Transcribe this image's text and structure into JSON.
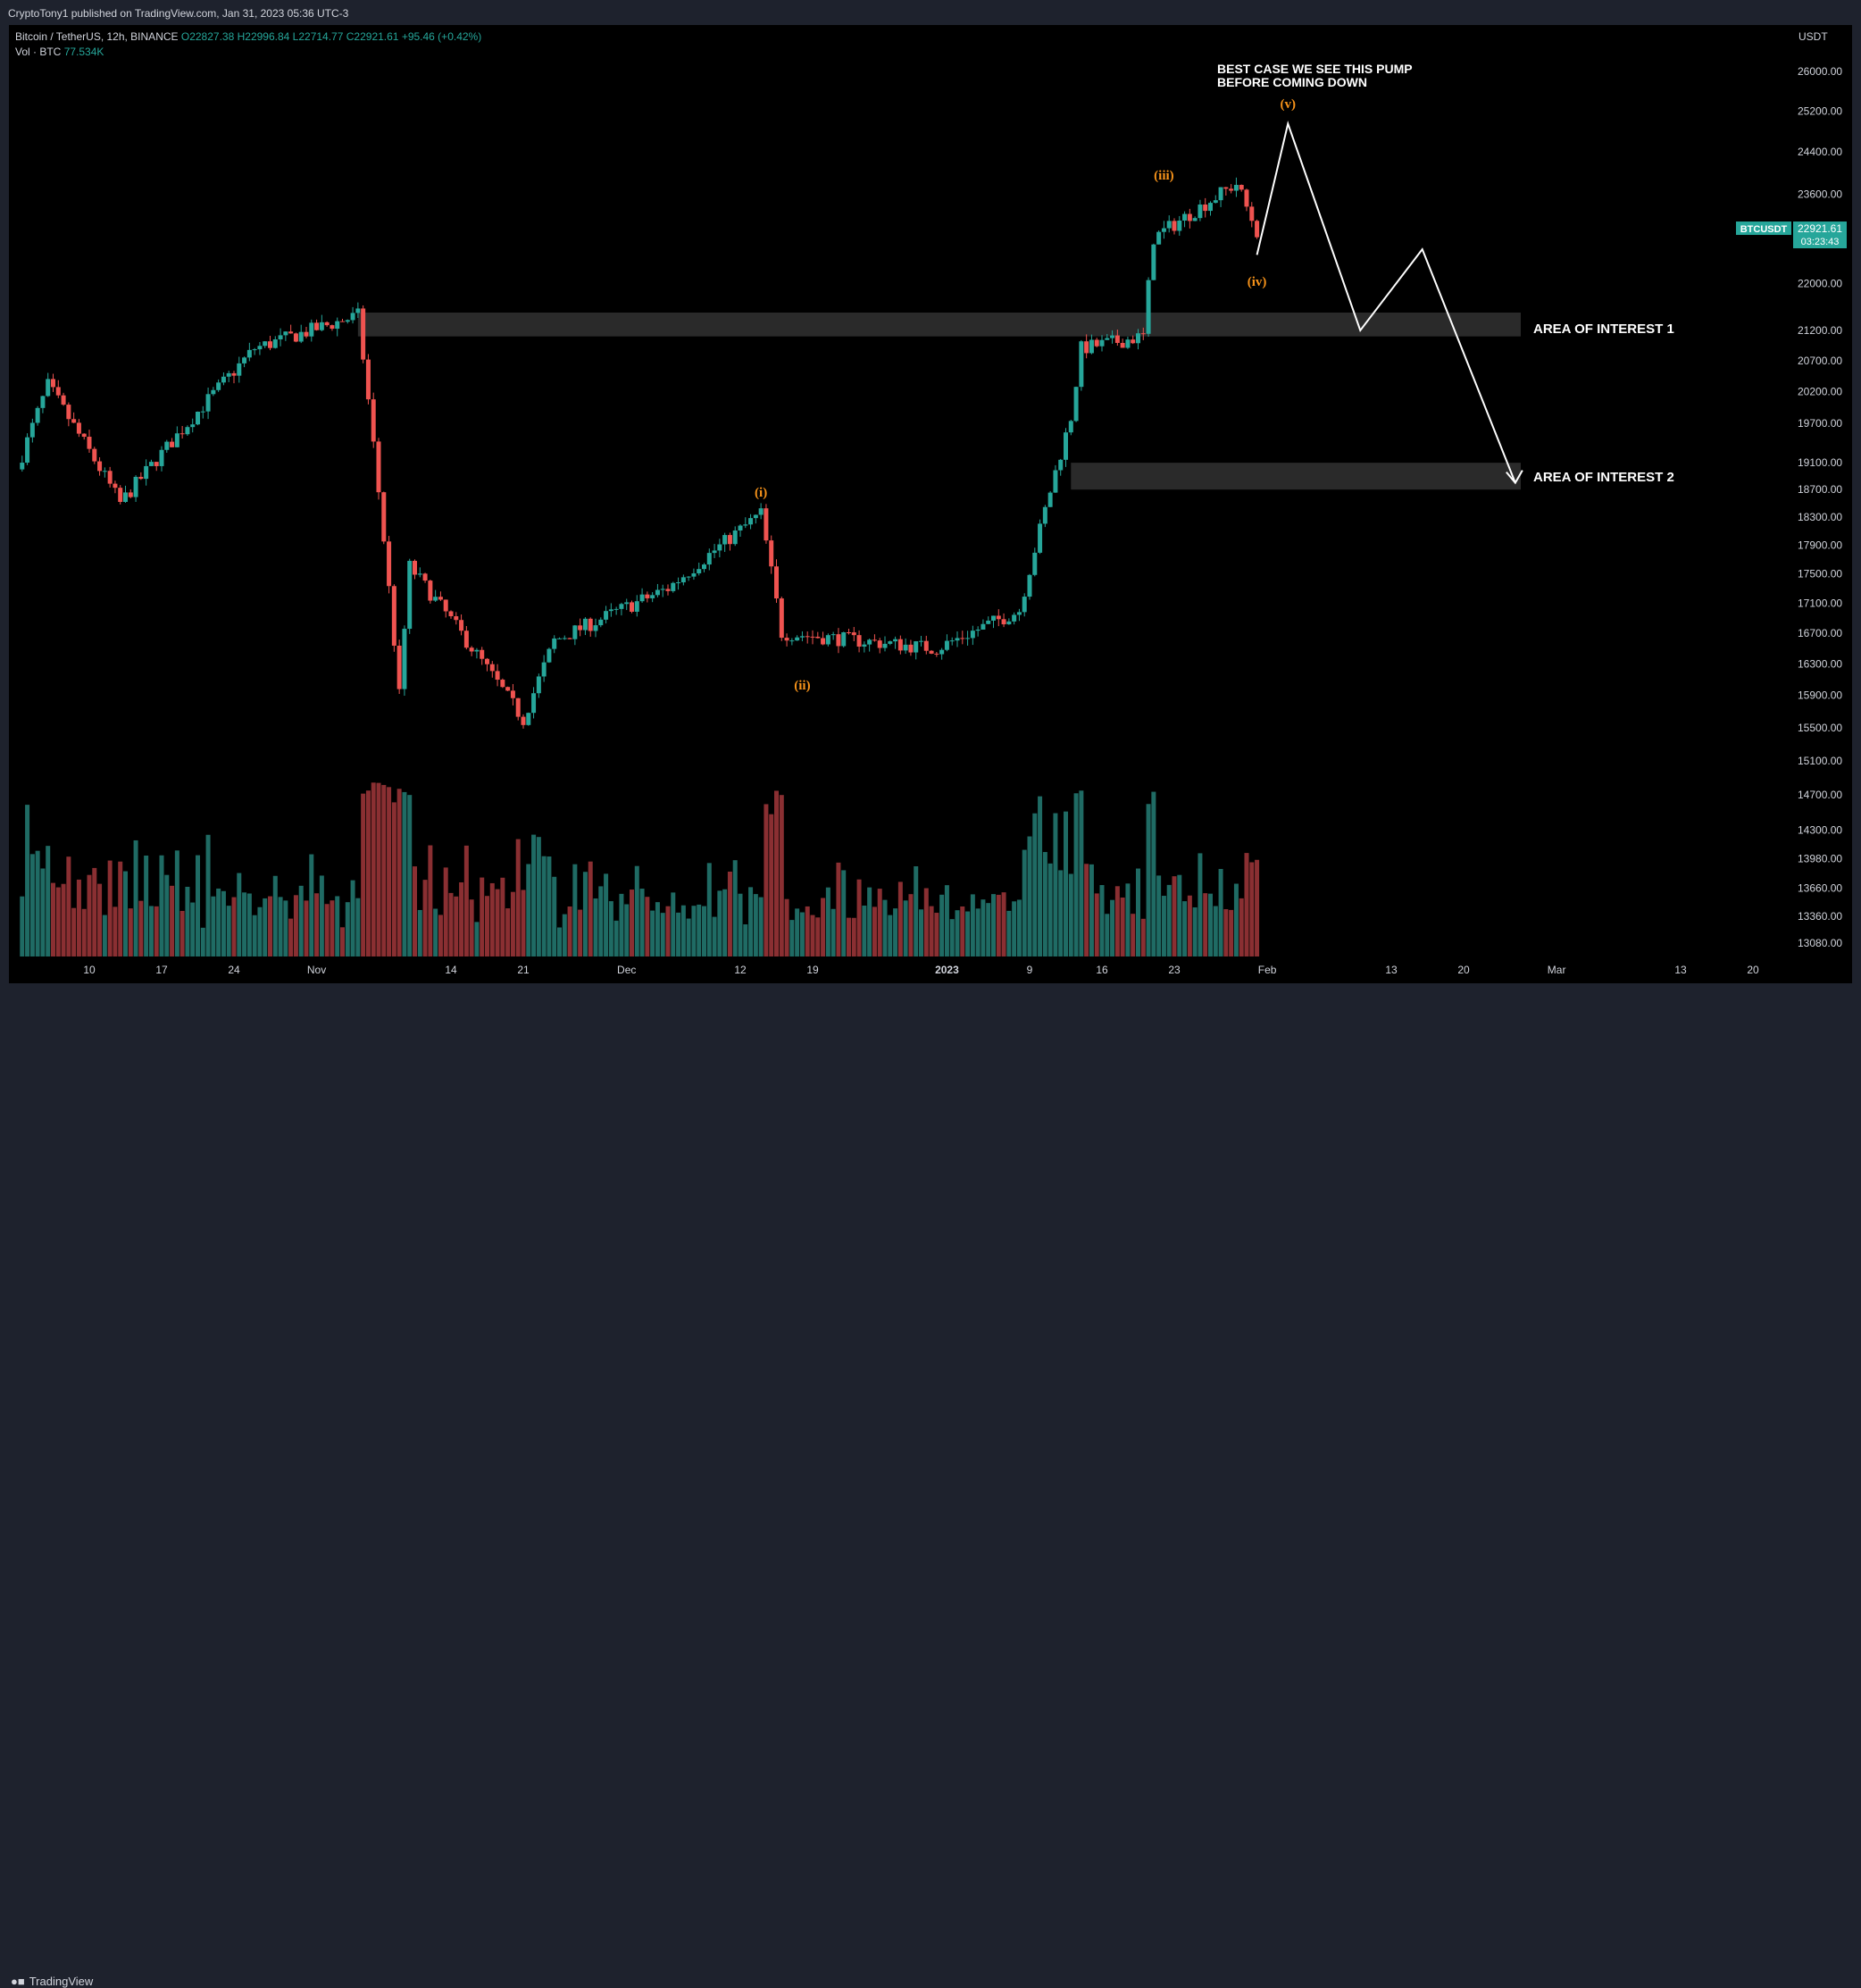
{
  "header": {
    "published_line": "CryptoTony1 published on TradingView.com, Jan 31, 2023 05:36 UTC-3"
  },
  "footer": {
    "brand": "TradingView"
  },
  "legend": {
    "symbol": "Bitcoin / TetherUS, 12h, BINANCE",
    "open": "O22827.38",
    "high": "H22996.84",
    "low": "L22714.77",
    "close": "C22921.61",
    "change": "+95.46 (+0.42%)",
    "vol_label": "Vol · BTC",
    "vol_value": "77.534K"
  },
  "price_badge": {
    "symbol": "BTCUSDT",
    "price": "22921.61",
    "countdown": "03:23:43"
  },
  "annotations": {
    "note_line1": "BEST CASE WE SEE THIS PUMP",
    "note_line2": "BEFORE COMING DOWN",
    "area1": "AREA OF INTEREST 1",
    "area2": "AREA OF INTEREST 2",
    "wave_i": "(i)",
    "wave_ii": "(ii)",
    "wave_iii": "(iii)",
    "wave_iv": "(iv)",
    "wave_v": "(v)"
  },
  "colors": {
    "up": "#26a69a",
    "down": "#ef5350",
    "vol_up": "#1f6b64",
    "vol_down": "#8a2f32",
    "wave": "#f7931a",
    "zone": "#2a2a2a"
  },
  "chart_data": {
    "type": "candlestick",
    "scale": "log",
    "yaxis_unit": "USDT",
    "yticks": [
      26000,
      25200,
      24400,
      23600,
      22000,
      21200,
      20700,
      20200,
      19700,
      19100,
      18700,
      18300,
      17900,
      17500,
      17100,
      16700,
      16300,
      15900,
      15500,
      15100,
      14700,
      14300,
      13980,
      13660,
      13360,
      13080
    ],
    "xticks": [
      "10",
      "17",
      "24",
      "Nov",
      "14",
      "21",
      "Dec",
      "12",
      "19",
      "2023",
      "9",
      "16",
      "23",
      "Feb",
      "13",
      "20",
      "Mar",
      "13",
      "20"
    ],
    "key_points": [
      {
        "date": "2022-10-03",
        "price": 19000
      },
      {
        "date": "2022-10-06",
        "price": 20300
      },
      {
        "date": "2022-10-13",
        "price": 18500
      },
      {
        "date": "2022-10-26",
        "price": 20900
      },
      {
        "date": "2022-11-05",
        "price": 21450
      },
      {
        "date": "2022-11-09",
        "price": 15900
      },
      {
        "date": "2022-11-10",
        "price": 17600
      },
      {
        "date": "2022-11-21",
        "price": 15600
      },
      {
        "date": "2022-11-24",
        "price": 16600
      },
      {
        "date": "2022-12-05",
        "price": 17300
      },
      {
        "date": "2022-12-14",
        "price": 18350
      },
      {
        "date": "2022-12-16",
        "price": 16700
      },
      {
        "date": "2022-12-31",
        "price": 16500
      },
      {
        "date": "2023-01-08",
        "price": 17000
      },
      {
        "date": "2023-01-13",
        "price": 19800
      },
      {
        "date": "2023-01-14",
        "price": 20900
      },
      {
        "date": "2023-01-20",
        "price": 21100
      },
      {
        "date": "2023-01-21",
        "price": 22800
      },
      {
        "date": "2023-01-29",
        "price": 23800
      },
      {
        "date": "2023-01-31",
        "price": 22921.61
      }
    ],
    "zones": [
      {
        "label": "AREA OF INTEREST 1",
        "from": 21100,
        "to": 21500
      },
      {
        "label": "AREA OF INTEREST 2",
        "from": 18700,
        "to": 19100
      }
    ],
    "projection": [
      {
        "date": "2023-01-31",
        "price": 22500
      },
      {
        "date": "2023-02-03",
        "price": 24950
      },
      {
        "date": "2023-02-10",
        "price": 21200
      },
      {
        "date": "2023-02-16",
        "price": 22600
      },
      {
        "date": "2023-02-25",
        "price": 18800
      }
    ]
  }
}
